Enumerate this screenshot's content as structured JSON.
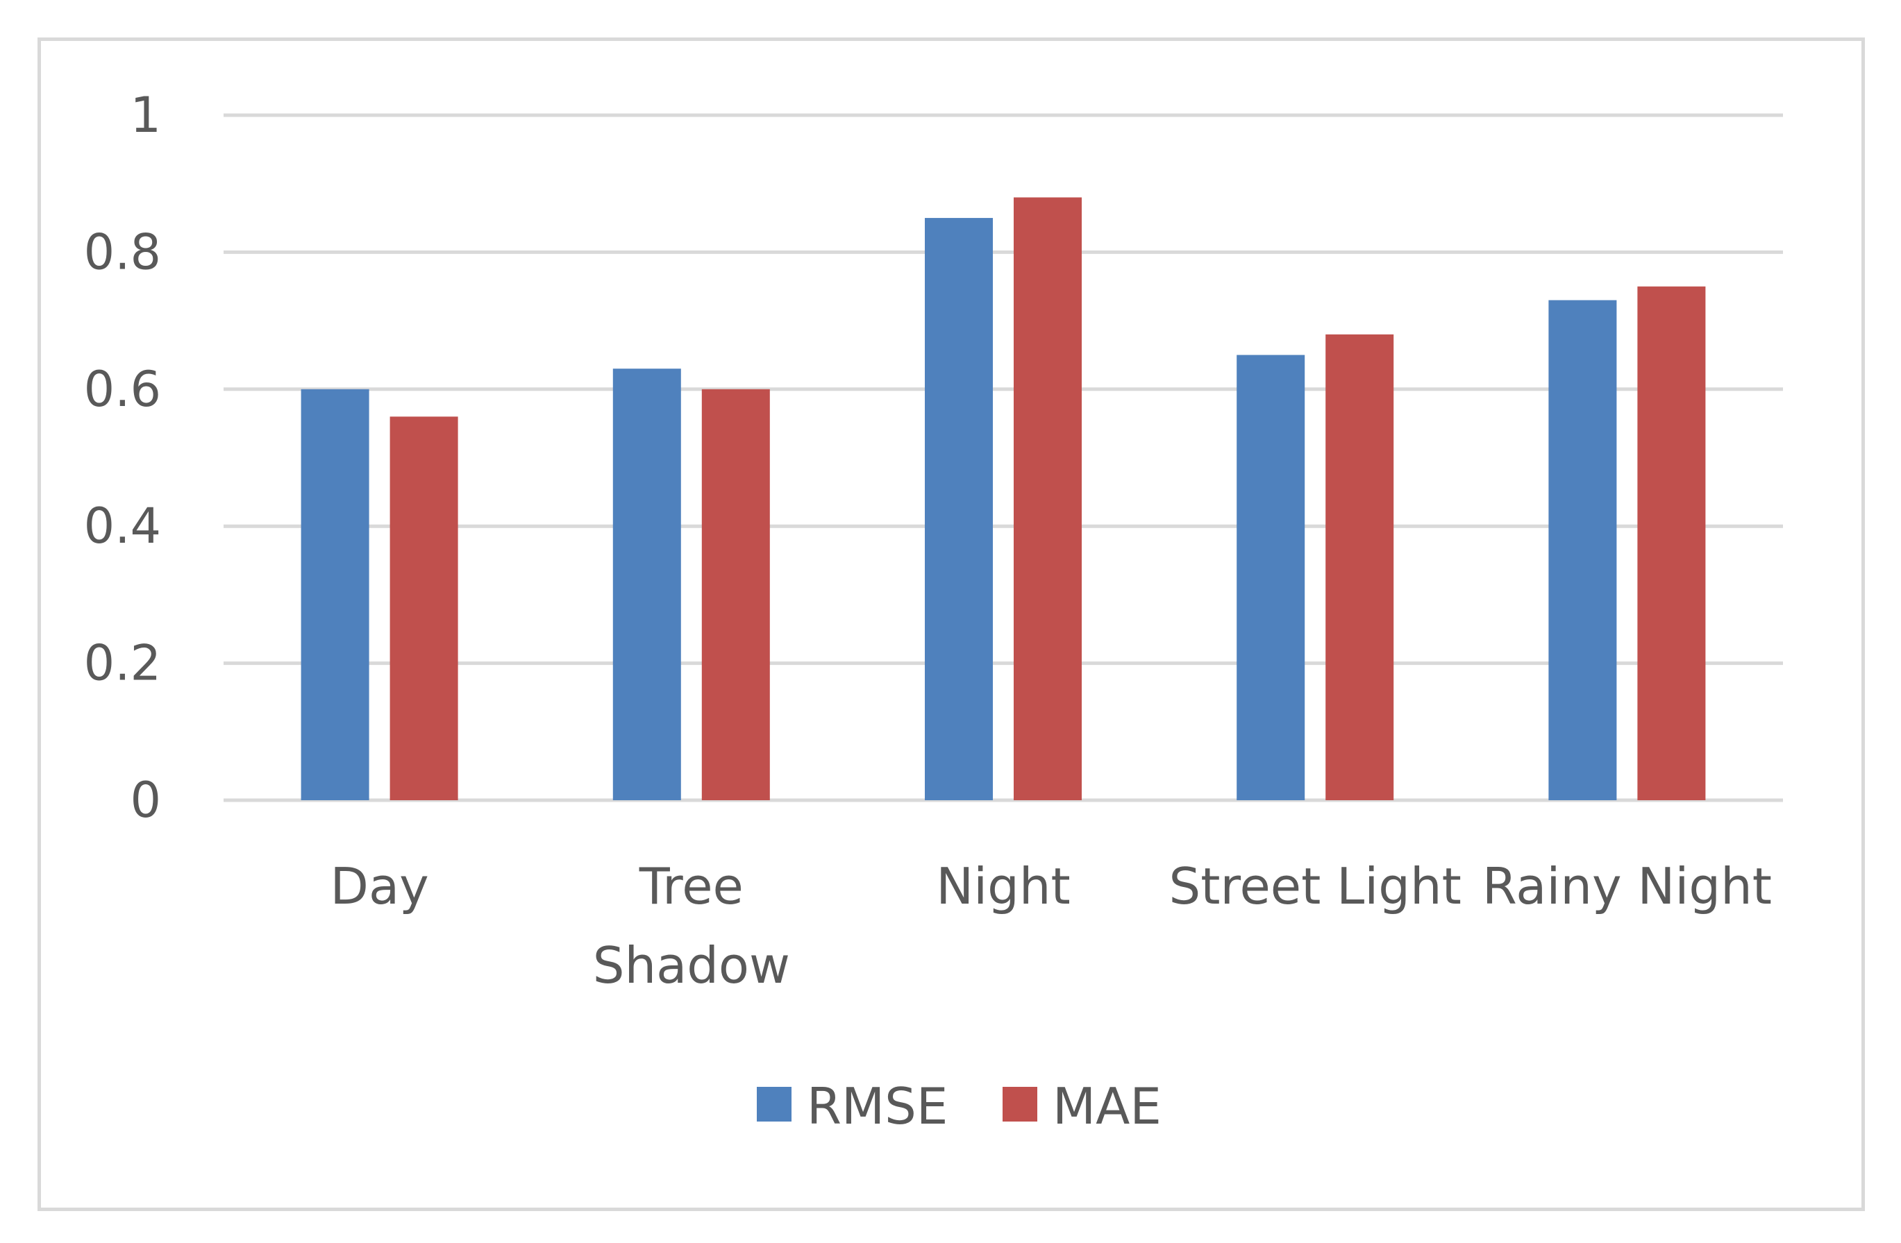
{
  "chart_data": {
    "type": "bar",
    "categories": [
      [
        "Day"
      ],
      [
        "Tree",
        "Shadow"
      ],
      [
        "Night"
      ],
      [
        "Street Light"
      ],
      [
        "Rainy Night"
      ]
    ],
    "series": [
      {
        "name": "RMSE",
        "color": "#4f81bd",
        "values": [
          0.6,
          0.63,
          0.85,
          0.65,
          0.73
        ]
      },
      {
        "name": "MAE",
        "color": "#c0504d",
        "values": [
          0.56,
          0.6,
          0.88,
          0.68,
          0.75
        ]
      }
    ],
    "yticks": [
      "0",
      "0.2",
      "0.4",
      "0.6",
      "0.8",
      "1"
    ],
    "ylim": [
      0,
      1
    ],
    "grid": true,
    "legend": "bottom",
    "title": "",
    "xlabel": "",
    "ylabel": ""
  }
}
